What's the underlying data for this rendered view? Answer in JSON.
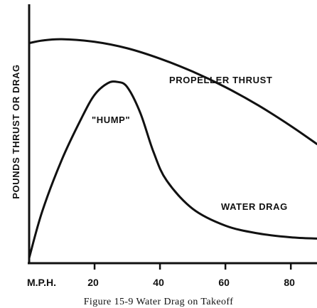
{
  "chart_data": {
    "type": "line",
    "title": "",
    "caption": "Figure 15-9   Water Drag on Takeoff",
    "ylabel": "POUNDS THRUST OR DRAG",
    "xlabel": "M.P.H.",
    "x_ticks": [
      "20",
      "40",
      "60",
      "80"
    ],
    "xlim": [
      0,
      88
    ],
    "ylim": [
      0,
      10
    ],
    "annotation": "\"HUMP\"",
    "series": [
      {
        "name": "PROPELLER THRUST",
        "x": [
          0,
          4,
          10,
          20,
          30,
          40,
          50,
          60,
          70,
          80,
          88
        ],
        "y": [
          8.5,
          8.6,
          8.65,
          8.55,
          8.3,
          7.9,
          7.4,
          6.8,
          6.1,
          5.3,
          4.6
        ]
      },
      {
        "name": "WATER DRAG",
        "x": [
          0,
          4,
          10,
          16,
          20,
          24,
          27,
          30,
          34,
          38,
          42,
          50,
          60,
          70,
          80,
          88
        ],
        "y": [
          0.2,
          2.0,
          4.0,
          5.6,
          6.5,
          6.95,
          7.0,
          6.8,
          5.8,
          4.3,
          3.2,
          2.1,
          1.45,
          1.15,
          1.0,
          0.95
        ]
      }
    ]
  }
}
